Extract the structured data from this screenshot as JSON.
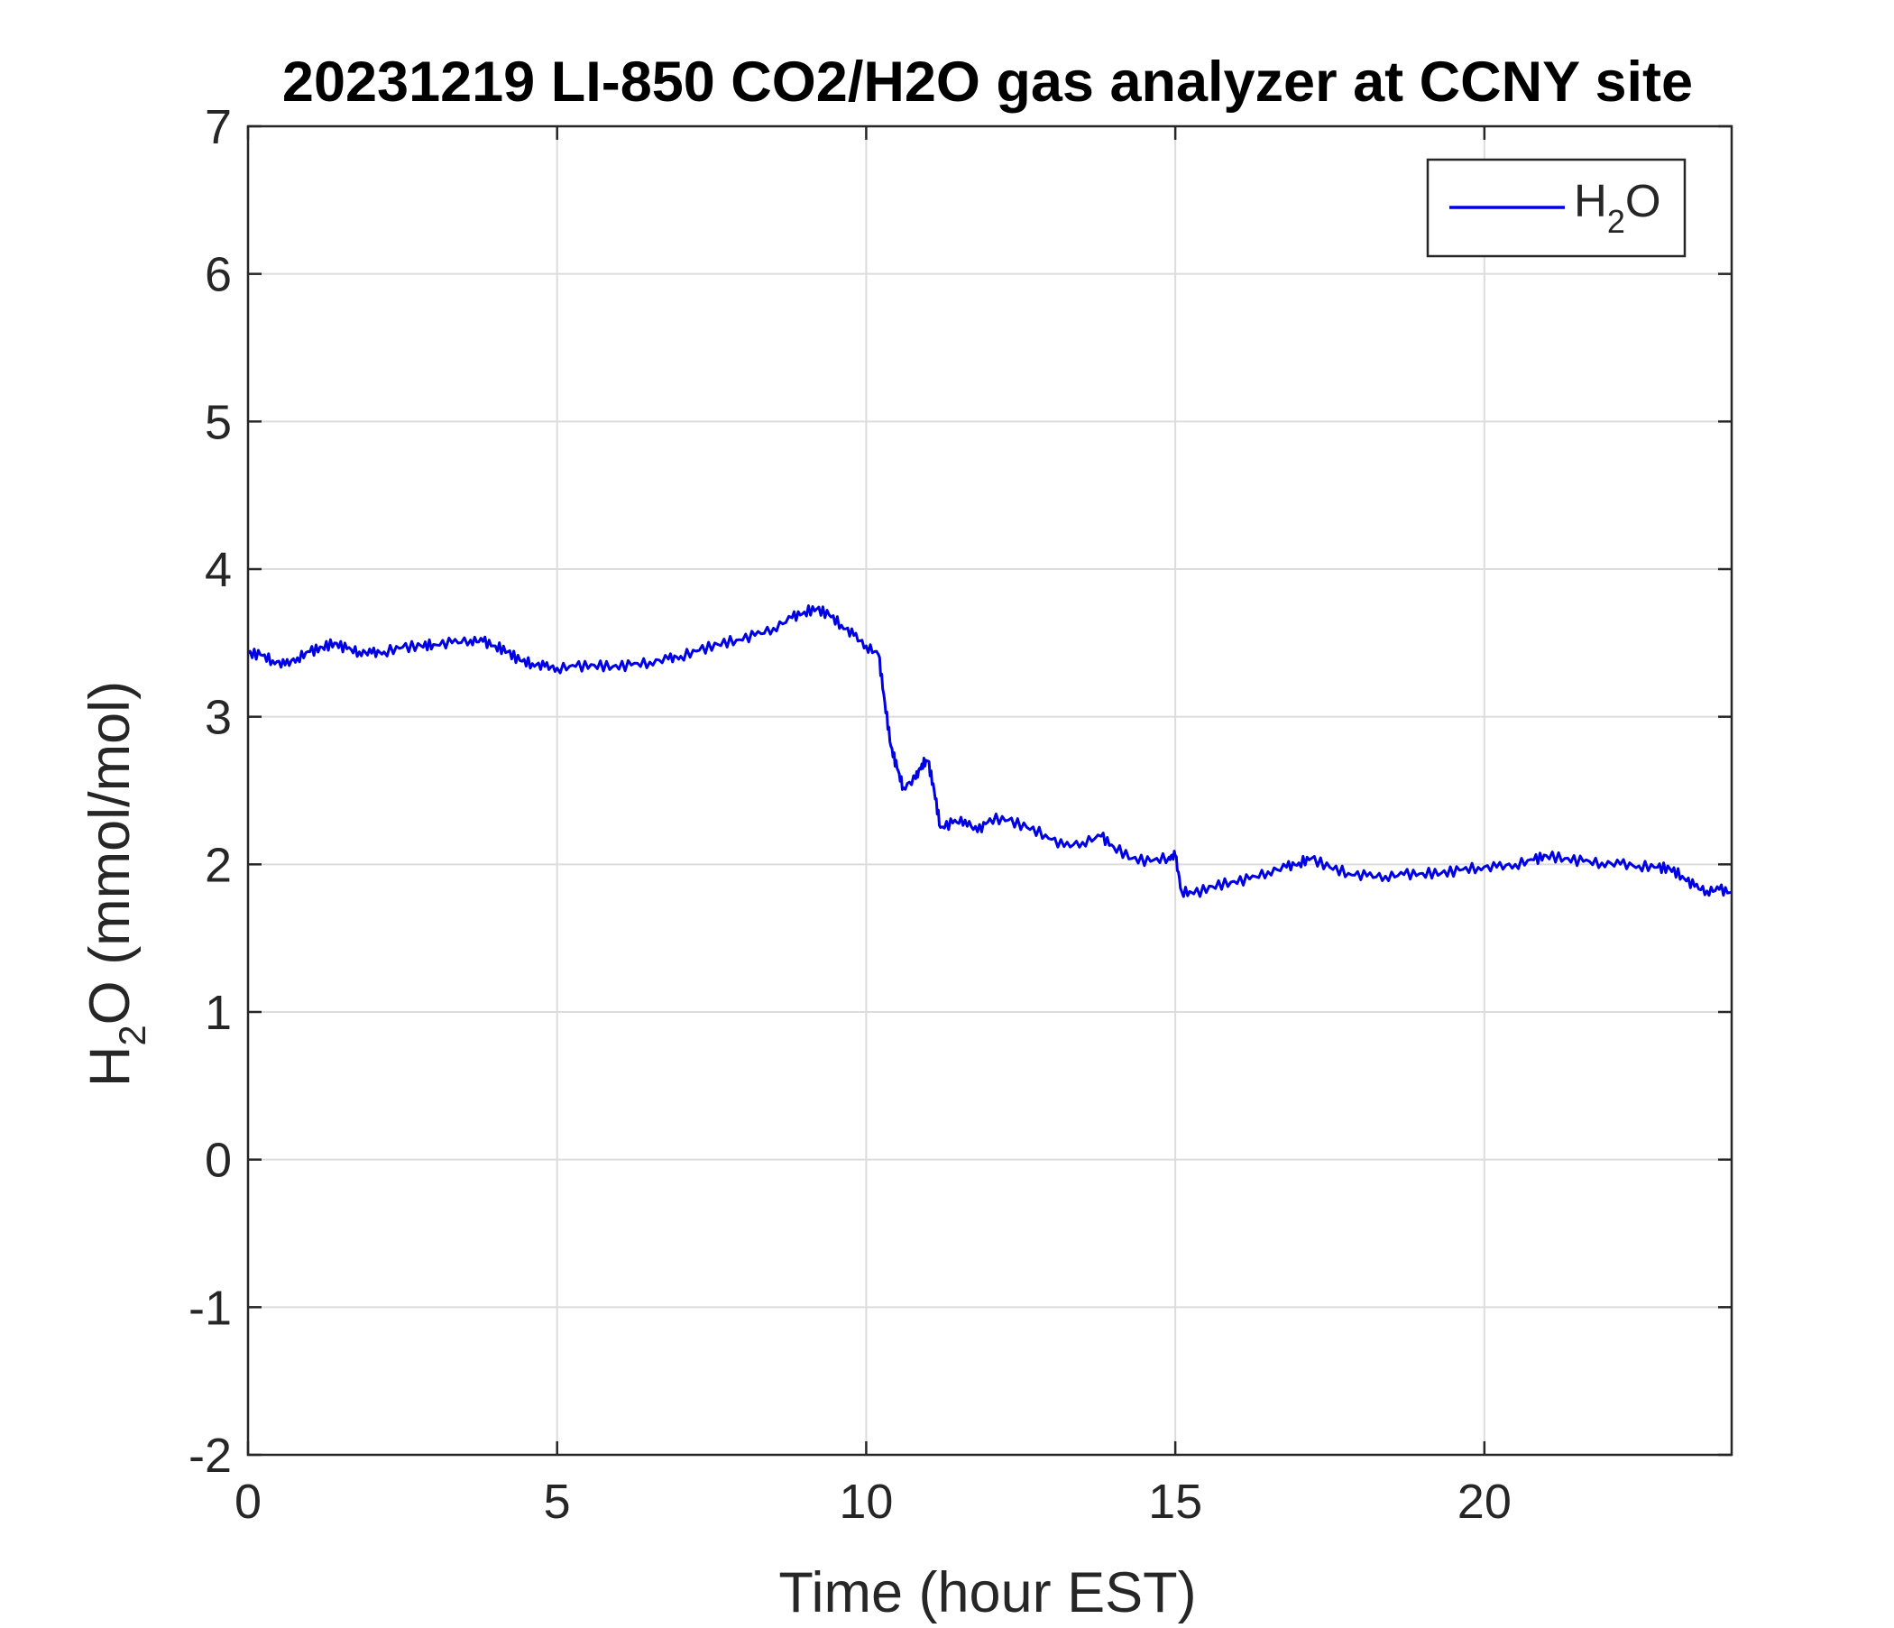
{
  "chart_data": {
    "type": "line",
    "title": "20231219 LI-850 CO2/H2O gas analyzer at CCNY site",
    "xlabel": "Time (hour EST)",
    "ylabel": {
      "main": "H",
      "sub": "2",
      "rest": "O (mmol/mol)"
    },
    "xlim": [
      0,
      24
    ],
    "ylim": [
      -2,
      7
    ],
    "xticks": [
      0,
      5,
      10,
      15,
      20
    ],
    "xtick_labels": [
      "0",
      "5",
      "10",
      "15",
      "20"
    ],
    "yticks": [
      -2,
      -1,
      0,
      1,
      2,
      3,
      4,
      5,
      6,
      7
    ],
    "ytick_labels": [
      "-2",
      "-1",
      "0",
      "1",
      "2",
      "3",
      "4",
      "5",
      "6",
      "7"
    ],
    "grid": true,
    "legend_position": "top-right",
    "series": [
      {
        "name": "H2O",
        "legend_label": {
          "main": "H",
          "sub": "2",
          "rest": "O"
        },
        "color": "#0000e6",
        "x": [
          0,
          0.2,
          0.4,
          0.6,
          0.8,
          1.0,
          1.2,
          1.4,
          1.6,
          1.8,
          2.0,
          2.2,
          2.5,
          2.8,
          3.0,
          3.3,
          3.6,
          3.8,
          4.0,
          4.2,
          4.4,
          4.6,
          4.8,
          5.0,
          5.3,
          5.6,
          5.9,
          6.2,
          6.5,
          6.8,
          7.0,
          7.3,
          7.6,
          7.9,
          8.2,
          8.5,
          8.8,
          9.0,
          9.2,
          9.4,
          9.6,
          9.8,
          10.0,
          10.2,
          10.3,
          10.4,
          10.5,
          10.6,
          10.8,
          10.9,
          11.0,
          11.1,
          11.2,
          11.4,
          11.6,
          11.8,
          12.0,
          12.3,
          12.6,
          12.9,
          13.2,
          13.5,
          13.8,
          14.0,
          14.3,
          14.6,
          14.9,
          15.0,
          15.1,
          15.3,
          15.6,
          15.9,
          16.2,
          16.5,
          16.8,
          17.0,
          17.2,
          17.5,
          17.8,
          18.1,
          18.4,
          18.7,
          19.0,
          19.3,
          19.6,
          19.9,
          20.2,
          20.5,
          20.8,
          21.0,
          21.3,
          21.6,
          21.9,
          22.2,
          22.5,
          22.8,
          23.0,
          23.2,
          23.4,
          23.6,
          23.8,
          24.0
        ],
        "y": [
          3.43,
          3.42,
          3.38,
          3.35,
          3.4,
          3.44,
          3.47,
          3.5,
          3.46,
          3.44,
          3.43,
          3.44,
          3.47,
          3.48,
          3.49,
          3.5,
          3.52,
          3.51,
          3.48,
          3.44,
          3.38,
          3.36,
          3.34,
          3.33,
          3.34,
          3.35,
          3.34,
          3.35,
          3.37,
          3.39,
          3.41,
          3.45,
          3.49,
          3.52,
          3.55,
          3.6,
          3.67,
          3.71,
          3.73,
          3.69,
          3.62,
          3.55,
          3.48,
          3.42,
          3.1,
          2.8,
          2.65,
          2.52,
          2.58,
          2.68,
          2.7,
          2.5,
          2.25,
          2.28,
          2.3,
          2.22,
          2.31,
          2.3,
          2.25,
          2.2,
          2.12,
          2.15,
          2.19,
          2.12,
          2.04,
          2.02,
          2.05,
          2.06,
          1.82,
          1.8,
          1.85,
          1.88,
          1.9,
          1.95,
          1.98,
          2.01,
          2.04,
          1.98,
          1.94,
          1.92,
          1.92,
          1.93,
          1.94,
          1.94,
          1.96,
          1.98,
          1.98,
          2.0,
          2.03,
          2.06,
          2.04,
          2.02,
          2.01,
          2.0,
          1.99,
          1.98,
          1.97,
          1.92,
          1.85,
          1.82,
          1.83,
          1.81
        ]
      }
    ]
  }
}
